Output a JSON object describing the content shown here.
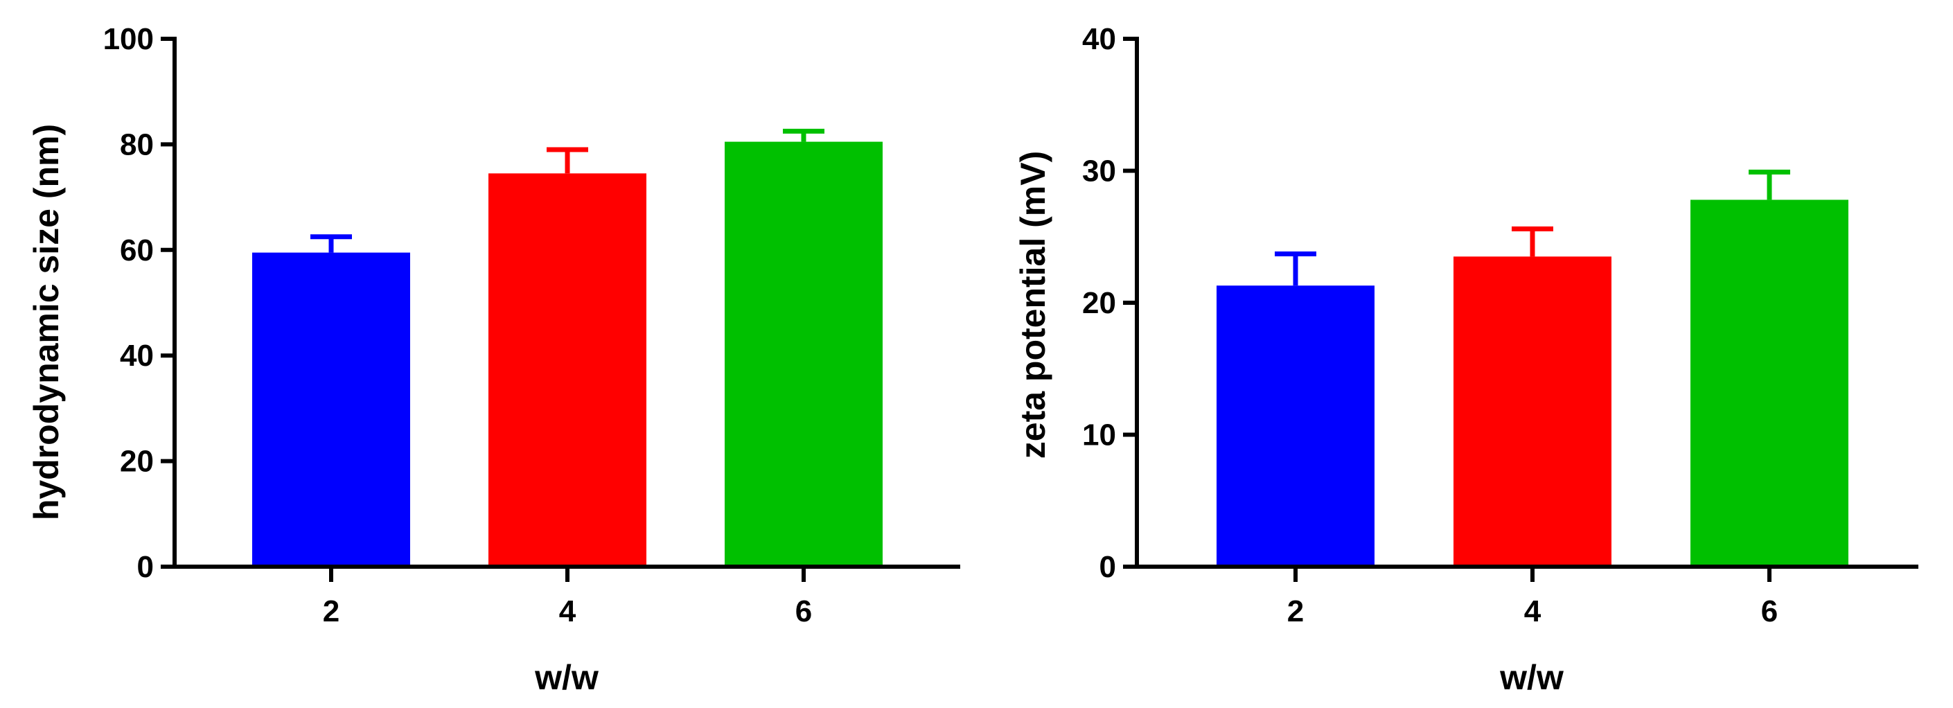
{
  "chart_data": [
    {
      "type": "bar",
      "categories": [
        "2",
        "4",
        "6"
      ],
      "values": [
        59.5,
        74.5,
        80.5
      ],
      "errors": [
        3,
        4.5,
        2
      ],
      "colors": [
        "#0000FF",
        "#FF0000",
        "#00C000"
      ],
      "xlabel": "w/w",
      "ylabel": "hydrodynamic size (nm)",
      "ylim": [
        0,
        100
      ],
      "yticks": [
        "0",
        "20",
        "40",
        "60",
        "80",
        "100"
      ],
      "grid": false
    },
    {
      "type": "bar",
      "categories": [
        "2",
        "4",
        "6"
      ],
      "values": [
        21.3,
        23.5,
        27.8
      ],
      "errors": [
        2.4,
        2.1,
        2.1
      ],
      "colors": [
        "#0000FF",
        "#FF0000",
        "#00C000"
      ],
      "xlabel": "w/w",
      "ylabel": "zeta potential (mV)",
      "ylim": [
        0,
        40
      ],
      "yticks": [
        "0",
        "10",
        "20",
        "30",
        "40"
      ],
      "grid": false
    }
  ]
}
